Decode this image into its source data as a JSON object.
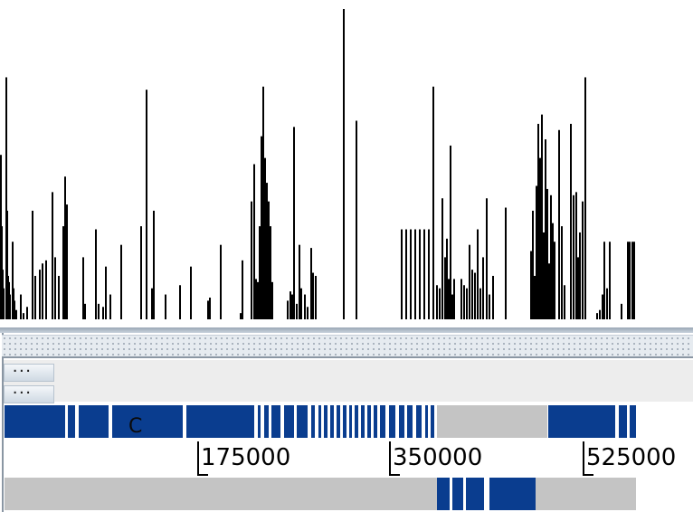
{
  "chart_data": {
    "type": "bar",
    "bars": [
      {
        "x": 0,
        "h": 0.53
      },
      {
        "x": 1,
        "h": 0.3
      },
      {
        "x": 2,
        "h": 0.16
      },
      {
        "x": 3,
        "h": 0.1
      },
      {
        "x": 6,
        "h": 0.78
      },
      {
        "x": 7,
        "h": 0.35
      },
      {
        "x": 8,
        "h": 0.14
      },
      {
        "x": 9,
        "h": 0.12
      },
      {
        "x": 10,
        "h": 0.08
      },
      {
        "x": 13,
        "h": 0.25
      },
      {
        "x": 14,
        "h": 0.1
      },
      {
        "x": 15,
        "h": 0.06
      },
      {
        "x": 17,
        "h": 0.03
      },
      {
        "x": 22,
        "h": 0.08
      },
      {
        "x": 25,
        "h": 0.02
      },
      {
        "x": 29,
        "h": 0.04
      },
      {
        "x": 35,
        "h": 0.35
      },
      {
        "x": 38,
        "h": 0.14
      },
      {
        "x": 43,
        "h": 0.16
      },
      {
        "x": 46,
        "h": 0.18
      },
      {
        "x": 50,
        "h": 0.19
      },
      {
        "x": 57,
        "h": 0.41
      },
      {
        "x": 60,
        "h": 0.2
      },
      {
        "x": 64,
        "h": 0.14
      },
      {
        "x": 69,
        "h": 0.3
      },
      {
        "x": 71,
        "h": 0.46
      },
      {
        "x": 73,
        "h": 0.37
      },
      {
        "x": 91,
        "h": 0.2
      },
      {
        "x": 93,
        "h": 0.05
      },
      {
        "x": 105,
        "h": 0.29
      },
      {
        "x": 108,
        "h": 0.05
      },
      {
        "x": 113,
        "h": 0.04
      },
      {
        "x": 116,
        "h": 0.17
      },
      {
        "x": 121,
        "h": 0.08
      },
      {
        "x": 133,
        "h": 0.24
      },
      {
        "x": 155,
        "h": 0.3
      },
      {
        "x": 161,
        "h": 0.74
      },
      {
        "x": 167,
        "h": 0.1
      },
      {
        "x": 169,
        "h": 0.35
      },
      {
        "x": 182,
        "h": 0.08
      },
      {
        "x": 198,
        "h": 0.11
      },
      {
        "x": 210,
        "h": 0.17
      },
      {
        "x": 229,
        "h": 0.06
      },
      {
        "x": 231,
        "h": 0.07
      },
      {
        "x": 243,
        "h": 0.24
      },
      {
        "x": 265,
        "h": 0.02
      },
      {
        "x": 267,
        "h": 0.19
      },
      {
        "x": 277,
        "h": 0.38
      },
      {
        "x": 280,
        "h": 0.5
      },
      {
        "x": 282,
        "h": 0.13
      },
      {
        "x": 284,
        "h": 0.12
      },
      {
        "x": 286,
        "h": 0.3
      },
      {
        "x": 288,
        "h": 0.59
      },
      {
        "x": 290,
        "h": 0.75
      },
      {
        "x": 292,
        "h": 0.52
      },
      {
        "x": 294,
        "h": 0.44
      },
      {
        "x": 296,
        "h": 0.38
      },
      {
        "x": 298,
        "h": 0.3
      },
      {
        "x": 300,
        "h": 0.12
      },
      {
        "x": 317,
        "h": 0.06
      },
      {
        "x": 320,
        "h": 0.09
      },
      {
        "x": 322,
        "h": 0.08
      },
      {
        "x": 324,
        "h": 0.62
      },
      {
        "x": 327,
        "h": 0.05
      },
      {
        "x": 330,
        "h": 0.24
      },
      {
        "x": 332,
        "h": 0.1
      },
      {
        "x": 336,
        "h": 0.08
      },
      {
        "x": 339,
        "h": 0.04
      },
      {
        "x": 343,
        "h": 0.23
      },
      {
        "x": 345,
        "h": 0.15
      },
      {
        "x": 348,
        "h": 0.14
      },
      {
        "x": 379,
        "h": 1.0
      },
      {
        "x": 393,
        "h": 0.64
      },
      {
        "x": 443,
        "h": 0.29
      },
      {
        "x": 448,
        "h": 0.29
      },
      {
        "x": 453,
        "h": 0.29
      },
      {
        "x": 458,
        "h": 0.29
      },
      {
        "x": 463,
        "h": 0.29
      },
      {
        "x": 468,
        "h": 0.29
      },
      {
        "x": 473,
        "h": 0.29
      },
      {
        "x": 478,
        "h": 0.75
      },
      {
        "x": 482,
        "h": 0.11
      },
      {
        "x": 485,
        "h": 0.1
      },
      {
        "x": 488,
        "h": 0.39
      },
      {
        "x": 491,
        "h": 0.2
      },
      {
        "x": 493,
        "h": 0.26
      },
      {
        "x": 495,
        "h": 0.13
      },
      {
        "x": 497,
        "h": 0.56
      },
      {
        "x": 499,
        "h": 0.08
      },
      {
        "x": 501,
        "h": 0.13
      },
      {
        "x": 509,
        "h": 0.13
      },
      {
        "x": 512,
        "h": 0.11
      },
      {
        "x": 515,
        "h": 0.1
      },
      {
        "x": 518,
        "h": 0.24
      },
      {
        "x": 521,
        "h": 0.16
      },
      {
        "x": 524,
        "h": 0.15
      },
      {
        "x": 527,
        "h": 0.29
      },
      {
        "x": 530,
        "h": 0.1
      },
      {
        "x": 533,
        "h": 0.2
      },
      {
        "x": 537,
        "h": 0.39
      },
      {
        "x": 540,
        "h": 0.08
      },
      {
        "x": 544,
        "h": 0.14
      },
      {
        "x": 558,
        "h": 0.36
      },
      {
        "x": 586,
        "h": 0.22
      },
      {
        "x": 588,
        "h": 0.35
      },
      {
        "x": 590,
        "h": 0.14
      },
      {
        "x": 592,
        "h": 0.43
      },
      {
        "x": 594,
        "h": 0.63
      },
      {
        "x": 596,
        "h": 0.52
      },
      {
        "x": 598,
        "h": 0.66
      },
      {
        "x": 600,
        "h": 0.28
      },
      {
        "x": 602,
        "h": 0.58
      },
      {
        "x": 604,
        "h": 0.42
      },
      {
        "x": 606,
        "h": 0.18
      },
      {
        "x": 608,
        "h": 0.4
      },
      {
        "x": 610,
        "h": 0.31
      },
      {
        "x": 612,
        "h": 0.25
      },
      {
        "x": 617,
        "h": 0.61
      },
      {
        "x": 620,
        "h": 0.3
      },
      {
        "x": 623,
        "h": 0.11
      },
      {
        "x": 630,
        "h": 0.63
      },
      {
        "x": 633,
        "h": 0.4
      },
      {
        "x": 636,
        "h": 0.41
      },
      {
        "x": 638,
        "h": 0.2
      },
      {
        "x": 640,
        "h": 0.28
      },
      {
        "x": 643,
        "h": 0.38
      },
      {
        "x": 646,
        "h": 0.78
      },
      {
        "x": 659,
        "h": 0.02
      },
      {
        "x": 662,
        "h": 0.03
      },
      {
        "x": 665,
        "h": 0.08
      },
      {
        "x": 667,
        "h": 0.25
      },
      {
        "x": 670,
        "h": 0.1
      },
      {
        "x": 673,
        "h": 0.25
      },
      {
        "x": 686,
        "h": 0.05
      },
      {
        "x": 693,
        "h": 0.25
      },
      {
        "x": 695,
        "h": 0.25
      },
      {
        "x": 698,
        "h": 0.25
      },
      {
        "x": 700,
        "h": 0.25
      }
    ],
    "bar_color": "#000000"
  },
  "controls": {
    "button1_label": "···",
    "button2_label": "···"
  },
  "track_top": {
    "feature_label": "C",
    "segments": [
      {
        "start": 5,
        "end": 72
      },
      {
        "start": 75,
        "end": 83
      },
      {
        "start": 87,
        "end": 120
      },
      {
        "start": 124,
        "end": 202
      },
      {
        "start": 206,
        "end": 281
      },
      {
        "start": 285,
        "end": 288
      },
      {
        "start": 292,
        "end": 297
      },
      {
        "start": 300,
        "end": 310
      },
      {
        "start": 314,
        "end": 325
      },
      {
        "start": 328,
        "end": 340
      },
      {
        "start": 344,
        "end": 348
      },
      {
        "start": 352,
        "end": 355
      },
      {
        "start": 358,
        "end": 362
      },
      {
        "start": 365,
        "end": 369
      },
      {
        "start": 372,
        "end": 376
      },
      {
        "start": 379,
        "end": 383
      },
      {
        "start": 386,
        "end": 389
      },
      {
        "start": 392,
        "end": 396
      },
      {
        "start": 399,
        "end": 403
      },
      {
        "start": 406,
        "end": 410
      },
      {
        "start": 413,
        "end": 417
      },
      {
        "start": 420,
        "end": 426
      },
      {
        "start": 430,
        "end": 437
      },
      {
        "start": 441,
        "end": 447
      },
      {
        "start": 450,
        "end": 456
      },
      {
        "start": 460,
        "end": 466
      },
      {
        "start": 470,
        "end": 473
      },
      {
        "start": 476,
        "end": 480
      },
      {
        "start": 606,
        "end": 680
      },
      {
        "start": 684,
        "end": 693
      },
      {
        "start": 696,
        "end": 703
      }
    ],
    "gray_segments": [
      {
        "start": 483,
        "end": 605
      }
    ]
  },
  "ruler": {
    "ticks": [
      "175000",
      "350000",
      "525000"
    ]
  },
  "track_bottom": {
    "segments": [
      {
        "start": 483,
        "end": 497
      },
      {
        "start": 500,
        "end": 512
      },
      {
        "start": 515,
        "end": 535
      },
      {
        "start": 541,
        "end": 592
      }
    ],
    "gray_segments": [
      {
        "start": 5,
        "end": 483
      },
      {
        "start": 592,
        "end": 703
      }
    ]
  },
  "colors": {
    "feature_blue": "#0a3d8f",
    "track_gray": "#c4c4c4"
  }
}
